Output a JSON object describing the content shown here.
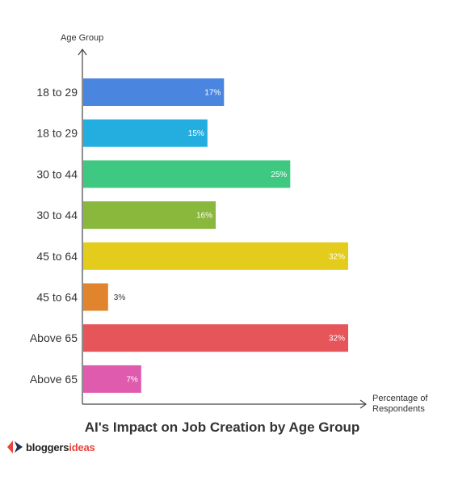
{
  "chart_data": {
    "type": "bar",
    "orientation": "horizontal",
    "title": "AI's Impact on Job Creation by Age Group",
    "ylabel": "Age Group",
    "xlabel": "Percentage of Respondents",
    "categories": [
      "18 to 29",
      "18 to 29",
      "30 to 44",
      "30 to 44",
      "45 to 64",
      "45 to 64",
      "Above 65",
      "Above 65"
    ],
    "values": [
      17,
      15,
      25,
      16,
      32,
      3,
      32,
      7
    ],
    "value_labels": [
      "17%",
      "15%",
      "25%",
      "16%",
      "32%",
      "3%",
      "32%",
      "7%"
    ],
    "colors": [
      "#4a86e0",
      "#24aee0",
      "#3ec882",
      "#8ab83c",
      "#e3cc1b",
      "#e0852e",
      "#e5555a",
      "#df5bae"
    ],
    "xlim": [
      0,
      32
    ],
    "grid": false,
    "legend": "none"
  },
  "brand": {
    "part1": "bloggers",
    "part2": "ideas",
    "logo_icon": "bloggersideas-logo-icon"
  }
}
